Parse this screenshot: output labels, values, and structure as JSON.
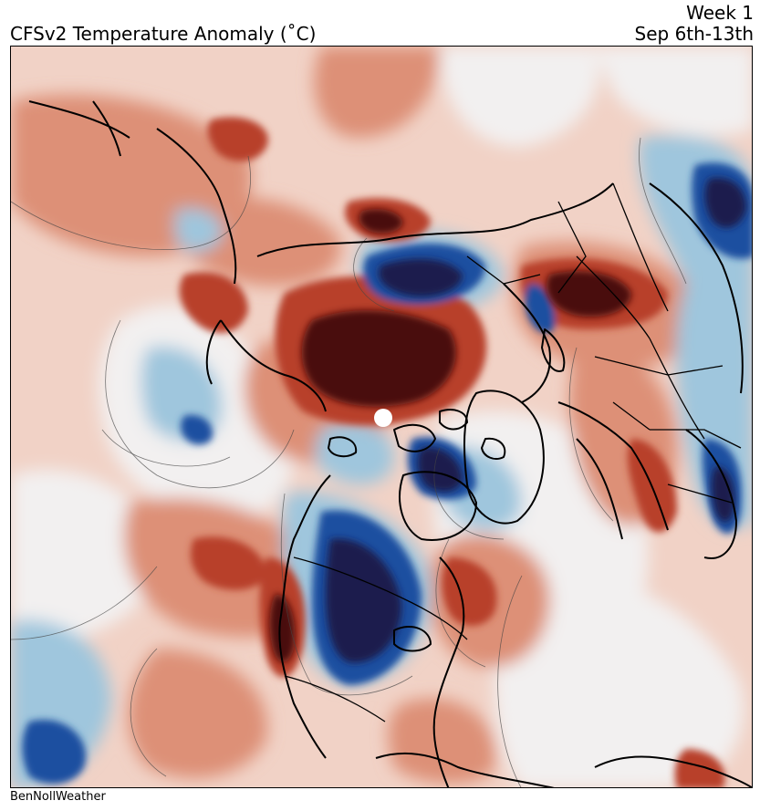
{
  "header": {
    "title": "CFSv2 Temperature Anomaly (˚C)",
    "week_label": "Week 1",
    "date_range": "Sep 6th-13th"
  },
  "footer": {
    "credit": "BenNollWeather"
  },
  "map": {
    "projection": "north-polar-stereographic",
    "variable": "temperature anomaly",
    "units": "˚C",
    "colormap": {
      "extreme_cold": "#1a1f4e",
      "strong_cold": "#1f4fa0",
      "cold": "#4f92c2",
      "cool": "#9fc6dd",
      "slight_cool": "#d4e4ee",
      "neutral": "#f2f0f0",
      "slight_warm": "#f1d2c6",
      "warm": "#dd9077",
      "strong_warm": "#b8402b",
      "extreme_warm": "#9c1c1c",
      "maxima": "#4a0a0e"
    },
    "coastline_color": "#000000",
    "contour_color": "#444444",
    "pole_marker_color": "#ffffff"
  }
}
